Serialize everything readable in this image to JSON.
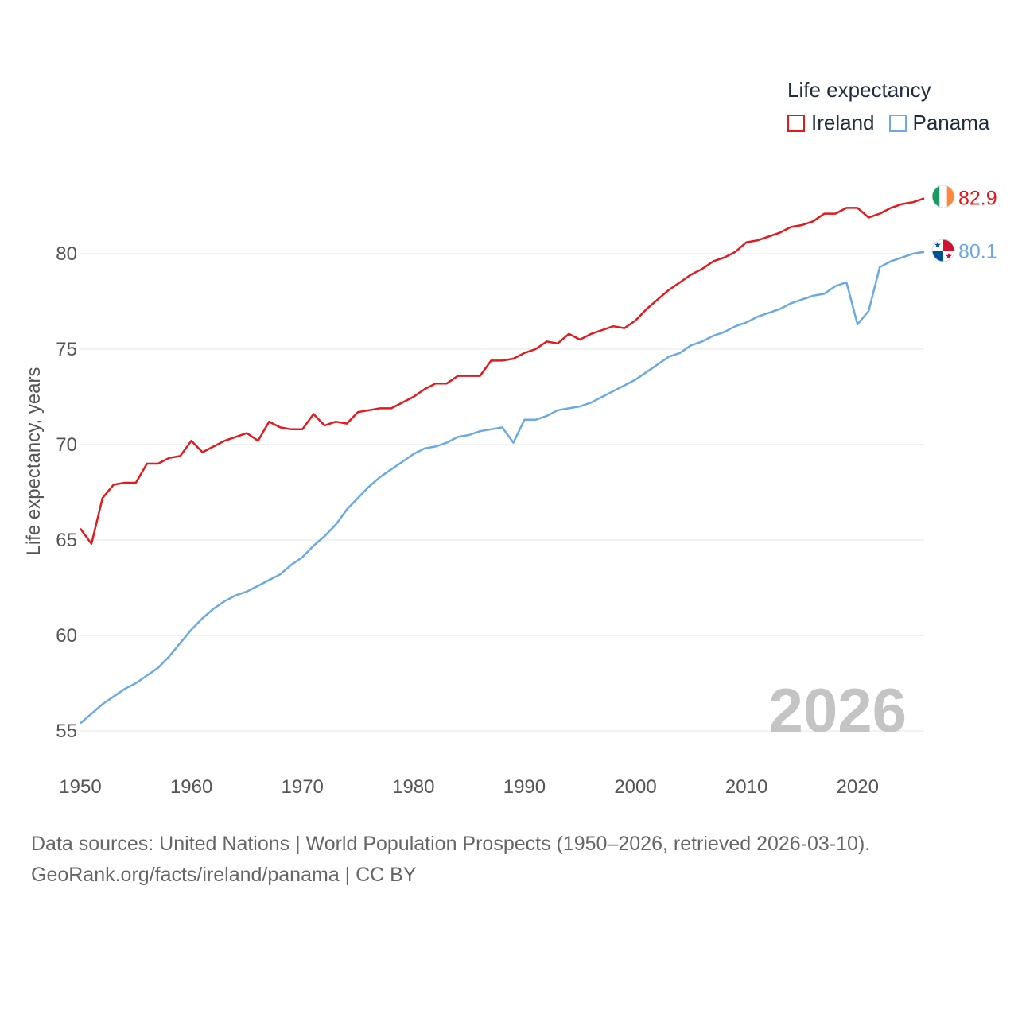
{
  "chart_data": {
    "type": "line",
    "legend_title": "Life expectancy",
    "ylabel": "Life expectancy, years",
    "xlabel": "",
    "year_label": "2026",
    "xlim": [
      1950,
      2026
    ],
    "ylim": [
      53.5,
      85
    ],
    "x_ticks": [
      1950,
      1960,
      1970,
      1980,
      1990,
      2000,
      2010,
      2020
    ],
    "y_ticks": [
      55,
      60,
      65,
      70,
      75,
      80
    ],
    "grid": true,
    "legend_position": "top-right",
    "x": [
      1950,
      1951,
      1952,
      1953,
      1954,
      1955,
      1956,
      1957,
      1958,
      1959,
      1960,
      1961,
      1962,
      1963,
      1964,
      1965,
      1966,
      1967,
      1968,
      1969,
      1970,
      1971,
      1972,
      1973,
      1974,
      1975,
      1976,
      1977,
      1978,
      1979,
      1980,
      1981,
      1982,
      1983,
      1984,
      1985,
      1986,
      1987,
      1988,
      1989,
      1990,
      1991,
      1992,
      1993,
      1994,
      1995,
      1996,
      1997,
      1998,
      1999,
      2000,
      2001,
      2002,
      2003,
      2004,
      2005,
      2006,
      2007,
      2008,
      2009,
      2010,
      2011,
      2012,
      2013,
      2014,
      2015,
      2016,
      2017,
      2018,
      2019,
      2020,
      2021,
      2022,
      2023,
      2024,
      2025,
      2026
    ],
    "series": [
      {
        "name": "Ireland",
        "color": "#e3191c",
        "end_label": "82.9",
        "values": [
          65.6,
          64.8,
          67.2,
          67.9,
          68.0,
          68.0,
          69.0,
          69.0,
          69.3,
          69.4,
          70.2,
          69.6,
          69.9,
          70.2,
          70.4,
          70.6,
          70.2,
          71.2,
          70.9,
          70.8,
          70.8,
          71.6,
          71.0,
          71.2,
          71.1,
          71.7,
          71.8,
          71.9,
          71.9,
          72.2,
          72.5,
          72.9,
          73.2,
          73.2,
          73.6,
          73.6,
          73.6,
          74.4,
          74.4,
          74.5,
          74.8,
          75.0,
          75.4,
          75.3,
          75.8,
          75.5,
          75.8,
          76.0,
          76.2,
          76.1,
          76.5,
          77.1,
          77.6,
          78.1,
          78.5,
          78.9,
          79.2,
          79.6,
          79.8,
          80.1,
          80.6,
          80.7,
          80.9,
          81.1,
          81.4,
          81.5,
          81.7,
          82.1,
          82.1,
          82.4,
          82.4,
          81.9,
          82.1,
          82.4,
          82.6,
          82.7,
          82.9
        ]
      },
      {
        "name": "Panama",
        "color": "#6aaae4",
        "end_label": "80.1",
        "values": [
          55.4,
          55.9,
          56.4,
          56.8,
          57.2,
          57.5,
          57.9,
          58.3,
          58.9,
          59.6,
          60.3,
          60.9,
          61.4,
          61.8,
          62.1,
          62.3,
          62.6,
          62.9,
          63.2,
          63.7,
          64.1,
          64.7,
          65.2,
          65.8,
          66.6,
          67.2,
          67.8,
          68.3,
          68.7,
          69.1,
          69.5,
          69.8,
          69.9,
          70.1,
          70.4,
          70.5,
          70.7,
          70.8,
          70.9,
          70.1,
          71.3,
          71.3,
          71.5,
          71.8,
          71.9,
          72.0,
          72.2,
          72.5,
          72.8,
          73.1,
          73.4,
          73.8,
          74.2,
          74.6,
          74.8,
          75.2,
          75.4,
          75.7,
          75.9,
          76.2,
          76.4,
          76.7,
          76.9,
          77.1,
          77.4,
          77.6,
          77.8,
          77.9,
          78.3,
          78.5,
          76.3,
          77.0,
          79.3,
          79.6,
          79.8,
          80.0,
          80.1
        ]
      }
    ]
  },
  "footer": {
    "line1": "Data sources: United Nations | World Population Prospects (1950–2026, retrieved 2026-03-10).",
    "line2": "GeoRank.org/facts/ireland/panama | CC BY"
  }
}
